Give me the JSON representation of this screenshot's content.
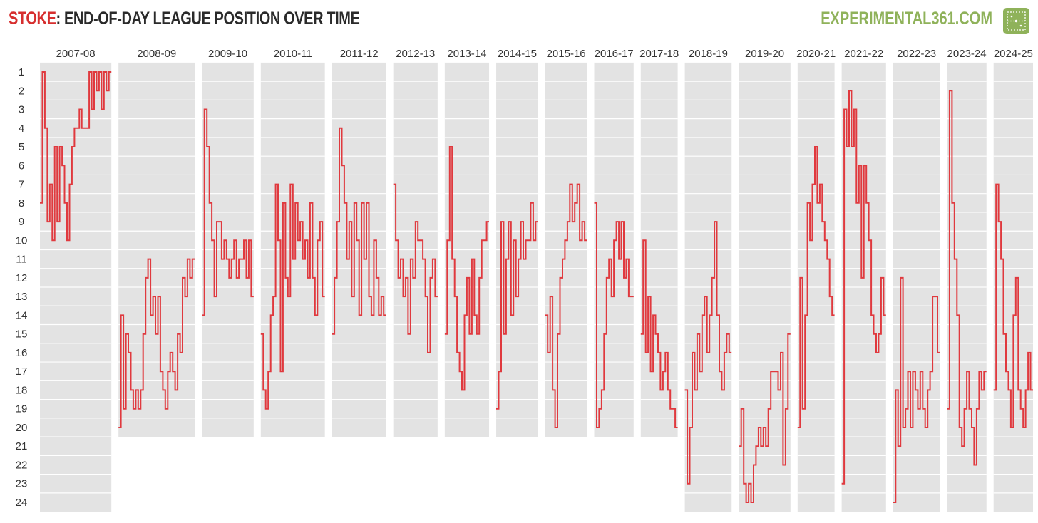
{
  "header": {
    "team": "STOKE",
    "title_rest": ": END-OF-DAY LEAGUE POSITION OVER TIME",
    "brand": "EXPERIMENTAL361.COM"
  },
  "icon": {
    "pitch": "football-pitch-icon"
  },
  "colors": {
    "line": "#e0393e",
    "band": "#e3e3e3",
    "grid": "#ffffff",
    "team": "#d62e2e",
    "brand": "#8fb25a"
  },
  "chart_data": {
    "type": "line",
    "title": "STOKE: END-OF-DAY LEAGUE POSITION OVER TIME",
    "ylim": [
      1,
      24
    ],
    "y_inverted": true,
    "y_ticks": [
      "1",
      "2",
      "3",
      "4",
      "5",
      "6",
      "7",
      "8",
      "9",
      "10",
      "11",
      "12",
      "13",
      "14",
      "15",
      "16",
      "17",
      "18",
      "19",
      "20",
      "21",
      "22",
      "23",
      "24"
    ],
    "grid": true,
    "seasons": [
      {
        "name": "2007-08",
        "teams": 24,
        "positions": [
          8,
          1,
          4,
          9,
          7,
          10,
          5,
          9,
          5,
          6,
          8,
          10,
          7,
          5,
          4,
          4,
          3,
          4,
          4,
          4,
          1,
          3,
          1,
          2,
          1,
          3,
          1,
          2,
          1
        ]
      },
      {
        "name": "2008-09",
        "teams": 20,
        "positions": [
          20,
          14,
          19,
          15,
          16,
          18,
          19,
          18,
          19,
          18,
          15,
          12,
          11,
          14,
          13,
          15,
          13,
          17,
          18,
          19,
          17,
          16,
          17,
          18,
          15,
          16,
          12,
          13,
          11,
          12,
          11
        ]
      },
      {
        "name": "2009-10",
        "teams": 20,
        "positions": [
          14,
          3,
          5,
          8,
          10,
          13,
          9,
          9,
          11,
          10,
          11,
          12,
          11,
          10,
          12,
          11,
          11,
          10,
          12,
          10,
          13
        ]
      },
      {
        "name": "2010-11",
        "teams": 20,
        "positions": [
          15,
          18,
          19,
          17,
          14,
          13,
          7,
          10,
          17,
          8,
          12,
          13,
          7,
          11,
          8,
          10,
          9,
          11,
          10,
          12,
          8,
          12,
          14,
          10,
          9,
          13
        ]
      },
      {
        "name": "2011-12",
        "teams": 20,
        "positions": [
          15,
          12,
          9,
          4,
          6,
          8,
          11,
          9,
          13,
          8,
          10,
          14,
          8,
          11,
          8,
          13,
          14,
          10,
          12,
          14,
          13,
          14
        ]
      },
      {
        "name": "2012-13",
        "teams": 20,
        "positions": [
          7,
          10,
          12,
          11,
          13,
          12,
          15,
          11,
          12,
          9,
          10,
          10,
          11,
          13,
          16,
          12,
          11,
          13
        ]
      },
      {
        "name": "2013-14",
        "teams": 20,
        "positions": [
          15,
          10,
          5,
          11,
          13,
          16,
          17,
          18,
          14,
          12,
          15,
          11,
          14,
          15,
          12,
          10,
          10,
          9
        ]
      },
      {
        "name": "2014-15",
        "teams": 20,
        "positions": [
          19,
          17,
          9,
          15,
          11,
          9,
          14,
          10,
          13,
          11,
          9,
          11,
          10,
          10,
          8,
          10,
          9
        ]
      },
      {
        "name": "2015-16",
        "teams": 20,
        "positions": [
          14,
          16,
          13,
          18,
          20,
          15,
          12,
          11,
          10,
          9,
          7,
          9,
          8,
          7,
          10,
          9,
          10
        ]
      },
      {
        "name": "2016-17",
        "teams": 20,
        "positions": [
          8,
          20,
          19,
          18,
          15,
          12,
          11,
          13,
          10,
          9,
          11,
          9,
          12,
          11,
          13,
          13
        ]
      },
      {
        "name": "2017-18",
        "teams": 20,
        "positions": [
          15,
          10,
          16,
          13,
          17,
          14,
          15,
          16,
          18,
          17,
          16,
          18,
          19,
          19,
          20
        ]
      },
      {
        "name": "2018-19",
        "teams": 24,
        "positions": [
          18,
          23,
          20,
          16,
          18,
          15,
          17,
          14,
          13,
          16,
          14,
          12,
          9,
          14,
          17,
          18,
          16,
          15,
          16
        ]
      },
      {
        "name": "2019-20",
        "teams": 24,
        "positions": [
          21,
          19,
          23,
          24,
          23,
          24,
          22,
          21,
          20,
          21,
          20,
          21,
          19,
          17,
          17,
          17,
          18,
          16,
          22,
          19,
          15
        ]
      },
      {
        "name": "2020-21",
        "teams": 24,
        "positions": [
          20,
          12,
          19,
          14,
          8,
          10,
          7,
          5,
          8,
          7,
          9,
          10,
          11,
          13,
          14
        ]
      },
      {
        "name": "2021-22",
        "teams": 24,
        "positions": [
          23,
          3,
          5,
          2,
          5,
          3,
          8,
          6,
          12,
          6,
          8,
          10,
          14,
          15,
          16,
          15,
          12,
          14
        ]
      },
      {
        "name": "2022-23",
        "teams": 24,
        "positions": [
          24,
          18,
          21,
          12,
          20,
          19,
          17,
          20,
          17,
          18,
          19,
          17,
          19,
          20,
          18,
          17,
          13,
          13,
          16
        ]
      },
      {
        "name": "2023-24",
        "teams": 24,
        "positions": [
          19,
          2,
          8,
          11,
          14,
          20,
          21,
          19,
          17,
          19,
          20,
          22,
          19,
          17,
          18,
          17
        ]
      },
      {
        "name": "2024-25",
        "teams": 24,
        "positions": [
          18,
          7,
          9,
          11,
          15,
          17,
          18,
          20,
          14,
          12,
          18,
          19,
          20,
          18,
          16,
          18
        ]
      }
    ]
  }
}
